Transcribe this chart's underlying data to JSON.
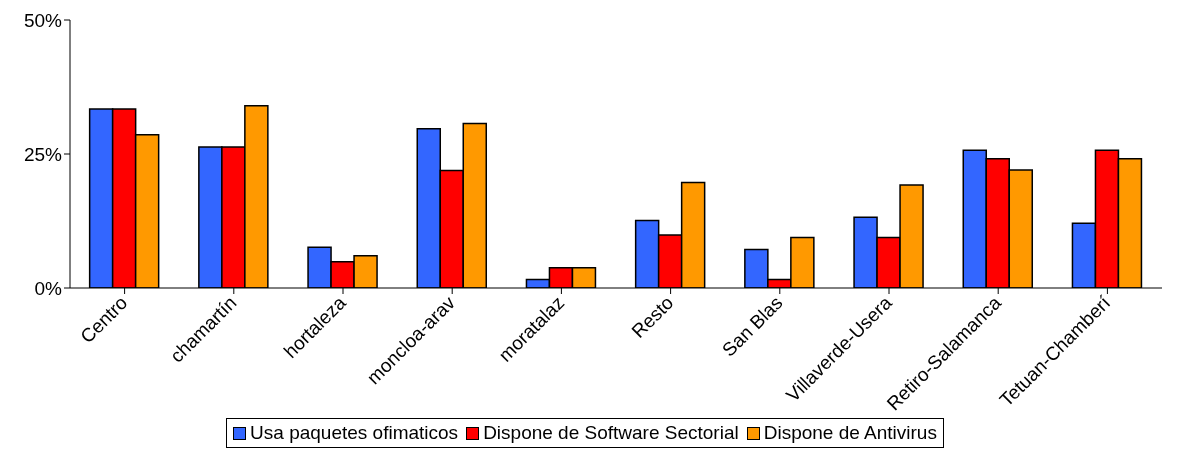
{
  "chart_data": {
    "type": "bar",
    "categories": [
      "Centro",
      "chamartín",
      "hortaleza",
      "moncloa-arav",
      "moratalaz",
      "Resto",
      "San Blas",
      "Villaverde-Usera",
      "Retiro-Salamanca",
      "Tetuan-Chamberí"
    ],
    "series": [
      {
        "name": "Usa paquetes ofimaticos",
        "color": "#3366ff",
        "values": [
          33.4,
          26.3,
          7.6,
          29.7,
          1.6,
          12.6,
          7.2,
          13.2,
          25.7,
          12.1
        ]
      },
      {
        "name": "Dispone de Software Sectorial",
        "color": "#ff0000",
        "values": [
          33.4,
          26.3,
          4.9,
          21.9,
          3.8,
          9.9,
          1.6,
          9.4,
          24.1,
          25.7
        ]
      },
      {
        "name": "Dispone de Antivirus",
        "color": "#ff9900",
        "values": [
          28.6,
          34.0,
          6.0,
          30.7,
          3.8,
          19.7,
          9.4,
          19.2,
          22.0,
          24.1
        ]
      }
    ],
    "ylim": [
      0,
      50
    ],
    "yticks": [
      {
        "value": 0,
        "label": "0%"
      },
      {
        "value": 25,
        "label": "25%"
      },
      {
        "value": 50,
        "label": "50%"
      }
    ],
    "grid": false,
    "legend": "bottom"
  }
}
